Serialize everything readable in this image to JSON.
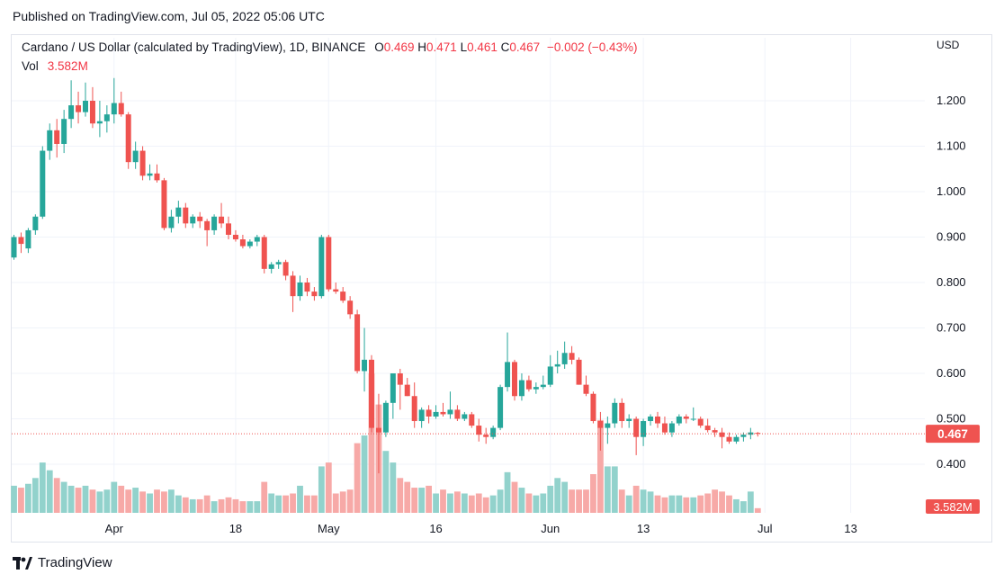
{
  "header": {
    "published": "Published on TradingView.com, Jul 05, 2022 05:06 UTC"
  },
  "legend": {
    "symbol": "Cardano / US Dollar (calculated by TradingView), 1D, BINANCE",
    "o_label": "O",
    "o_value": "0.469",
    "h_label": "H",
    "h_value": "0.471",
    "l_label": "L",
    "l_value": "0.461",
    "c_label": "C",
    "c_value": "0.467",
    "change": "−0.002 (−0.43%)",
    "vol_label": "Vol",
    "vol_value": "3.582M"
  },
  "axis": {
    "currency": "USD"
  },
  "footer": {
    "brand": "TradingView"
  },
  "colors": {
    "up": "#26a69a",
    "down": "#ef5350",
    "up_vol": "#92d2cc",
    "down_vol": "#f7a9a7",
    "grid": "#f0f3fa"
  },
  "chart_data": {
    "type": "candlestick",
    "ylim": [
      0.38,
      1.28
    ],
    "yticks": [
      0.4,
      0.5,
      0.6,
      0.7,
      0.8,
      0.9,
      1.0,
      1.1,
      1.2
    ],
    "ytick_labels": [
      "0.400",
      "0.500",
      "0.600",
      "0.700",
      "0.800",
      "0.900",
      "1.000",
      "1.100",
      "1.200"
    ],
    "xticks": [
      {
        "index": 14,
        "label": "Apr"
      },
      {
        "index": 31,
        "label": "18"
      },
      {
        "index": 44,
        "label": "May"
      },
      {
        "index": 59,
        "label": "16"
      },
      {
        "index": 75,
        "label": "Jun"
      },
      {
        "index": 88,
        "label": "13"
      },
      {
        "index": 105,
        "label": "Jul"
      },
      {
        "index": 117,
        "label": "13"
      }
    ],
    "last_price": "0.467",
    "last_price_value": 0.467,
    "last_volume": "3.582M",
    "volume_max": 14.0,
    "candles": [
      [
        0.855,
        0.905,
        0.85,
        0.9,
        7.0
      ],
      [
        0.9,
        0.91,
        0.865,
        0.885,
        6.5
      ],
      [
        0.875,
        0.92,
        0.865,
        0.915,
        7.5
      ],
      [
        0.915,
        0.95,
        0.905,
        0.945,
        9.0
      ],
      [
        0.945,
        1.1,
        0.94,
        1.09,
        13.0
      ],
      [
        1.09,
        1.15,
        1.07,
        1.135,
        11.0
      ],
      [
        1.135,
        1.16,
        1.075,
        1.105,
        9.0
      ],
      [
        1.105,
        1.18,
        1.085,
        1.16,
        8.0
      ],
      [
        1.16,
        1.245,
        1.14,
        1.19,
        7.0
      ],
      [
        1.19,
        1.22,
        1.15,
        1.175,
        6.5
      ],
      [
        1.175,
        1.24,
        1.165,
        1.2,
        7.0
      ],
      [
        1.2,
        1.23,
        1.14,
        1.15,
        6.0
      ],
      [
        1.15,
        1.2,
        1.12,
        1.155,
        5.5
      ],
      [
        1.155,
        1.19,
        1.13,
        1.17,
        6.0
      ],
      [
        1.17,
        1.25,
        1.15,
        1.195,
        8.0
      ],
      [
        1.195,
        1.22,
        1.165,
        1.17,
        7.0
      ],
      [
        1.17,
        1.175,
        1.05,
        1.065,
        6.0
      ],
      [
        1.065,
        1.11,
        1.05,
        1.09,
        6.5
      ],
      [
        1.09,
        1.1,
        1.025,
        1.035,
        5.5
      ],
      [
        1.035,
        1.06,
        1.025,
        1.04,
        5.0
      ],
      [
        1.04,
        1.06,
        1.02,
        1.025,
        6.0
      ],
      [
        1.025,
        1.03,
        0.915,
        0.92,
        5.5
      ],
      [
        0.92,
        0.96,
        0.91,
        0.945,
        6.0
      ],
      [
        0.945,
        0.98,
        0.93,
        0.965,
        4.5
      ],
      [
        0.965,
        0.975,
        0.92,
        0.93,
        4.0
      ],
      [
        0.93,
        0.95,
        0.92,
        0.945,
        3.5
      ],
      [
        0.945,
        0.955,
        0.92,
        0.935,
        3.5
      ],
      [
        0.935,
        0.94,
        0.88,
        0.915,
        4.5
      ],
      [
        0.915,
        0.95,
        0.905,
        0.945,
        3.0
      ],
      [
        0.945,
        0.975,
        0.92,
        0.93,
        3.5
      ],
      [
        0.93,
        0.945,
        0.895,
        0.905,
        4.0
      ],
      [
        0.905,
        0.915,
        0.89,
        0.895,
        3.5
      ],
      [
        0.895,
        0.905,
        0.875,
        0.88,
        3.0
      ],
      [
        0.88,
        0.895,
        0.875,
        0.89,
        3.0
      ],
      [
        0.89,
        0.905,
        0.88,
        0.9,
        3.0
      ],
      [
        0.9,
        0.905,
        0.82,
        0.83,
        8.0
      ],
      [
        0.83,
        0.845,
        0.82,
        0.84,
        5.0
      ],
      [
        0.84,
        0.85,
        0.83,
        0.845,
        4.5
      ],
      [
        0.845,
        0.85,
        0.805,
        0.815,
        4.5
      ],
      [
        0.815,
        0.825,
        0.735,
        0.77,
        5.0
      ],
      [
        0.77,
        0.815,
        0.76,
        0.8,
        7.0
      ],
      [
        0.8,
        0.81,
        0.77,
        0.78,
        4.5
      ],
      [
        0.78,
        0.79,
        0.76,
        0.77,
        4.5
      ],
      [
        0.77,
        0.905,
        0.765,
        0.9,
        12.0
      ],
      [
        0.9,
        0.905,
        0.78,
        0.785,
        13.0
      ],
      [
        0.785,
        0.8,
        0.775,
        0.78,
        5.0
      ],
      [
        0.78,
        0.79,
        0.755,
        0.76,
        5.5
      ],
      [
        0.76,
        0.77,
        0.72,
        0.73,
        6.0
      ],
      [
        0.73,
        0.74,
        0.6,
        0.605,
        18.0
      ],
      [
        0.605,
        0.7,
        0.56,
        0.63,
        20.0
      ],
      [
        0.63,
        0.64,
        0.47,
        0.48,
        36.0
      ],
      [
        0.48,
        0.555,
        0.38,
        0.47,
        28.0
      ],
      [
        0.47,
        0.54,
        0.46,
        0.535,
        16.0
      ],
      [
        0.535,
        0.6,
        0.5,
        0.6,
        13.0
      ],
      [
        0.6,
        0.61,
        0.52,
        0.575,
        9.0
      ],
      [
        0.575,
        0.59,
        0.55,
        0.55,
        8.0
      ],
      [
        0.55,
        0.58,
        0.48,
        0.495,
        6.5
      ],
      [
        0.495,
        0.525,
        0.48,
        0.52,
        6.5
      ],
      [
        0.52,
        0.53,
        0.49,
        0.505,
        7.0
      ],
      [
        0.505,
        0.53,
        0.5,
        0.515,
        5.0
      ],
      [
        0.515,
        0.535,
        0.505,
        0.51,
        6.0
      ],
      [
        0.51,
        0.56,
        0.5,
        0.52,
        5.0
      ],
      [
        0.52,
        0.53,
        0.495,
        0.5,
        5.5
      ],
      [
        0.5,
        0.515,
        0.495,
        0.51,
        5.0
      ],
      [
        0.51,
        0.515,
        0.48,
        0.485,
        4.5
      ],
      [
        0.485,
        0.5,
        0.45,
        0.465,
        5.0
      ],
      [
        0.465,
        0.48,
        0.445,
        0.46,
        4.0
      ],
      [
        0.46,
        0.485,
        0.455,
        0.48,
        4.5
      ],
      [
        0.48,
        0.575,
        0.475,
        0.57,
        6.0
      ],
      [
        0.57,
        0.69,
        0.56,
        0.625,
        10.5
      ],
      [
        0.625,
        0.63,
        0.54,
        0.55,
        8.0
      ],
      [
        0.55,
        0.6,
        0.54,
        0.585,
        6.5
      ],
      [
        0.585,
        0.595,
        0.56,
        0.565,
        5.0
      ],
      [
        0.565,
        0.58,
        0.555,
        0.57,
        4.5
      ],
      [
        0.57,
        0.595,
        0.565,
        0.575,
        5.0
      ],
      [
        0.575,
        0.64,
        0.57,
        0.615,
        7.0
      ],
      [
        0.615,
        0.65,
        0.6,
        0.62,
        9.0
      ],
      [
        0.62,
        0.67,
        0.61,
        0.645,
        8.0
      ],
      [
        0.645,
        0.66,
        0.62,
        0.63,
        6.0
      ],
      [
        0.63,
        0.635,
        0.575,
        0.575,
        6.0
      ],
      [
        0.575,
        0.595,
        0.55,
        0.555,
        6.0
      ],
      [
        0.555,
        0.56,
        0.49,
        0.495,
        10.0
      ],
      [
        0.495,
        0.515,
        0.43,
        0.48,
        24.0
      ],
      [
        0.48,
        0.505,
        0.445,
        0.49,
        12.0
      ],
      [
        0.49,
        0.545,
        0.48,
        0.535,
        12.0
      ],
      [
        0.535,
        0.545,
        0.48,
        0.495,
        6.0
      ],
      [
        0.495,
        0.51,
        0.48,
        0.5,
        4.5
      ],
      [
        0.5,
        0.505,
        0.42,
        0.46,
        7.0
      ],
      [
        0.46,
        0.5,
        0.44,
        0.495,
        6.0
      ],
      [
        0.495,
        0.51,
        0.485,
        0.505,
        5.5
      ],
      [
        0.505,
        0.515,
        0.48,
        0.49,
        4.5
      ],
      [
        0.49,
        0.505,
        0.465,
        0.47,
        4.0
      ],
      [
        0.47,
        0.495,
        0.46,
        0.49,
        4.5
      ],
      [
        0.49,
        0.51,
        0.485,
        0.505,
        4.5
      ],
      [
        0.505,
        0.51,
        0.49,
        0.5,
        4.0
      ],
      [
        0.5,
        0.525,
        0.495,
        0.5,
        4.0
      ],
      [
        0.5,
        0.505,
        0.48,
        0.485,
        4.5
      ],
      [
        0.485,
        0.5,
        0.47,
        0.475,
        5.0
      ],
      [
        0.475,
        0.48,
        0.46,
        0.47,
        6.0
      ],
      [
        0.47,
        0.48,
        0.435,
        0.46,
        5.5
      ],
      [
        0.46,
        0.47,
        0.445,
        0.45,
        4.5
      ],
      [
        0.45,
        0.465,
        0.445,
        0.46,
        3.5
      ],
      [
        0.46,
        0.47,
        0.45,
        0.465,
        3.0
      ],
      [
        0.465,
        0.48,
        0.455,
        0.47,
        5.5
      ],
      [
        0.469,
        0.471,
        0.461,
        0.467,
        1.2
      ]
    ]
  }
}
